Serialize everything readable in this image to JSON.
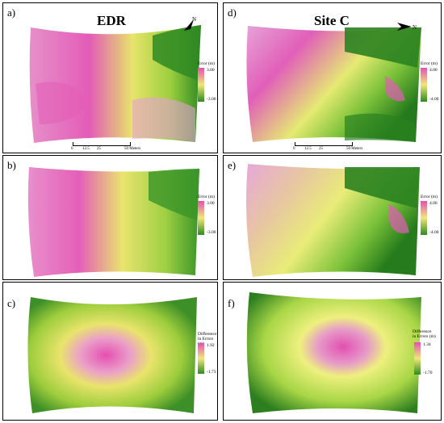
{
  "panels": [
    {
      "id": "a",
      "label": "a)",
      "title": "EDR",
      "legend_title": "Error (m)",
      "max": "3.00",
      "min": "-3.00",
      "scale": [
        "0",
        "12.5",
        "25",
        "50 Meters"
      ]
    },
    {
      "id": "b",
      "label": "b)",
      "legend_title": "Error (m)",
      "max": "3.00",
      "min": "-3.00"
    },
    {
      "id": "c",
      "label": "c)",
      "legend_title_1": "Difference",
      "legend_title_2": "in Errors (m)",
      "max": "1.92",
      "min": "-1.73"
    },
    {
      "id": "d",
      "label": "d)",
      "title": "Site C",
      "legend_title": "Error (m)",
      "max": "4.00",
      "min": "-4.00",
      "scale": [
        "0",
        "12.5",
        "25",
        "50 Meters"
      ]
    },
    {
      "id": "e",
      "label": "e)",
      "legend_title": "Error (m)",
      "max": "4.00",
      "min": "-4.00"
    },
    {
      "id": "f",
      "label": "f)",
      "legend_title_1": "Difference",
      "legend_title_2": "in Errors (m)",
      "max": "1.34",
      "min": "-1.70"
    }
  ],
  "north_arrow": "N",
  "colors": {
    "pink": "#e64fb4",
    "light_pink": "#f2a6d8",
    "yellow": "#e8ee6a",
    "green": "#2e8b1f",
    "dark_green": "#1f6e18"
  }
}
